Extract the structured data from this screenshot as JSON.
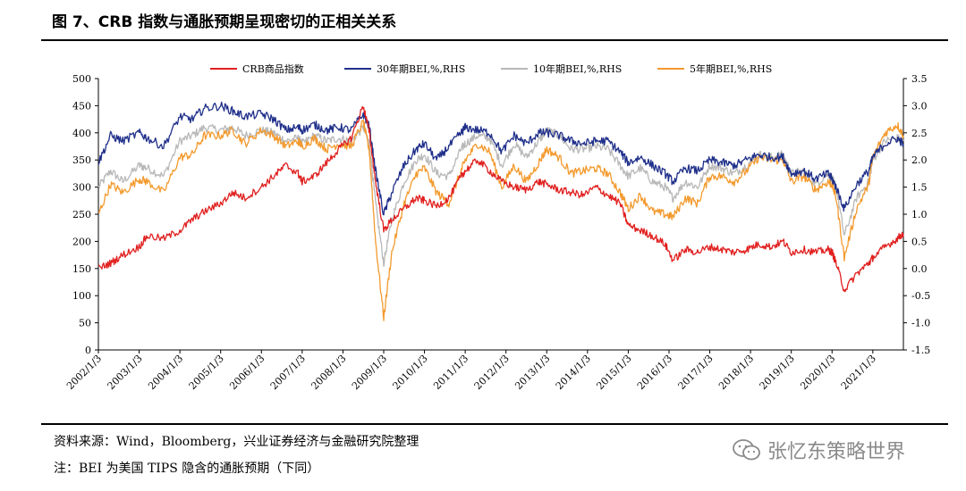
{
  "title": "图 7、CRB 指数与通胀预期呈现密切的正相关关系",
  "source": "资料来源：Wind，Bloomberg，兴业证券经济与金融研究院整理",
  "note": "注：BEI 为美国 TIPS 隐含的通胀预期（下同）",
  "watermark": "张忆东策略世界",
  "watermark_icon": "wechat-icon",
  "chart_data": {
    "type": "line",
    "xlabel": "",
    "ylabel": "",
    "x_ticks": [
      "2002/1/3",
      "2003/1/3",
      "2004/1/3",
      "2005/1/3",
      "2006/1/3",
      "2007/1/3",
      "2008/1/3",
      "2009/1/3",
      "2010/1/3",
      "2011/1/3",
      "2012/1/3",
      "2013/1/3",
      "2014/1/3",
      "2015/1/3",
      "2016/1/3",
      "2017/1/3",
      "2018/1/3",
      "2019/1/3",
      "2020/1/3",
      "2021/1/3"
    ],
    "x_range": [
      2002.0,
      2021.75
    ],
    "y_left": {
      "min": 0,
      "max": 500,
      "ticks": [
        "0",
        "50",
        "100",
        "150",
        "200",
        "250",
        "300",
        "350",
        "400",
        "450",
        "500"
      ]
    },
    "y_right": {
      "min": -1.5,
      "max": 3.5,
      "ticks": [
        "-1.5",
        "-1.0",
        "-0.5",
        "0.0",
        "0.5",
        "1.0",
        "1.5",
        "2.0",
        "2.5",
        "3.0",
        "3.5"
      ]
    },
    "grid": false,
    "legend_position": "top",
    "series": [
      {
        "name": "CRB商品指数",
        "axis": "left",
        "color": "#e0201f",
        "x": [
          2002.0,
          2002.3,
          2002.6,
          2003.0,
          2003.2,
          2003.6,
          2004.0,
          2004.3,
          2004.6,
          2005.0,
          2005.3,
          2005.6,
          2006.0,
          2006.3,
          2006.6,
          2006.9,
          2007.0,
          2007.3,
          2007.6,
          2007.9,
          2008.2,
          2008.5,
          2008.65,
          2008.8,
          2009.0,
          2009.2,
          2009.5,
          2009.8,
          2010.0,
          2010.3,
          2010.6,
          2010.9,
          2011.0,
          2011.3,
          2011.6,
          2011.9,
          2012.2,
          2012.5,
          2012.8,
          2013.0,
          2013.3,
          2013.6,
          2013.9,
          2014.2,
          2014.5,
          2014.8,
          2015.0,
          2015.3,
          2015.6,
          2015.9,
          2016.1,
          2016.4,
          2016.7,
          2017.0,
          2017.3,
          2017.6,
          2017.9,
          2018.2,
          2018.5,
          2018.8,
          2019.0,
          2019.3,
          2019.6,
          2019.9,
          2020.0,
          2020.1,
          2020.3,
          2020.6,
          2020.9,
          2021.0,
          2021.3,
          2021.6,
          2021.75
        ],
        "y": [
          150,
          160,
          175,
          190,
          210,
          205,
          220,
          240,
          255,
          270,
          290,
          280,
          300,
          320,
          340,
          325,
          310,
          320,
          345,
          370,
          390,
          450,
          400,
          310,
          220,
          240,
          260,
          280,
          275,
          265,
          280,
          320,
          330,
          350,
          330,
          310,
          300,
          295,
          310,
          305,
          295,
          290,
          285,
          300,
          285,
          270,
          230,
          220,
          210,
          195,
          165,
          185,
          180,
          190,
          185,
          180,
          185,
          195,
          190,
          200,
          180,
          185,
          180,
          185,
          180,
          160,
          110,
          140,
          160,
          170,
          190,
          205,
          215
        ]
      },
      {
        "name": "30年期BEI,%,RHS",
        "axis": "right",
        "color": "#1f2f8a",
        "x": [
          2002.0,
          2002.3,
          2002.6,
          2003.0,
          2003.2,
          2003.6,
          2004.0,
          2004.3,
          2004.6,
          2005.0,
          2005.3,
          2005.6,
          2006.0,
          2006.3,
          2006.6,
          2006.9,
          2007.0,
          2007.3,
          2007.6,
          2007.9,
          2008.2,
          2008.5,
          2008.65,
          2008.8,
          2009.0,
          2009.2,
          2009.5,
          2009.8,
          2010.0,
          2010.3,
          2010.6,
          2010.9,
          2011.0,
          2011.3,
          2011.6,
          2011.9,
          2012.2,
          2012.5,
          2012.8,
          2013.0,
          2013.3,
          2013.6,
          2013.9,
          2014.2,
          2014.5,
          2014.8,
          2015.0,
          2015.3,
          2015.6,
          2015.9,
          2016.1,
          2016.4,
          2016.7,
          2017.0,
          2017.3,
          2017.6,
          2017.9,
          2018.2,
          2018.5,
          2018.8,
          2019.0,
          2019.3,
          2019.6,
          2019.9,
          2020.0,
          2020.1,
          2020.3,
          2020.6,
          2020.9,
          2021.0,
          2021.3,
          2021.6,
          2021.75
        ],
        "y": [
          1.95,
          2.45,
          2.35,
          2.5,
          2.4,
          2.25,
          2.8,
          2.75,
          2.95,
          3.0,
          2.9,
          2.8,
          2.85,
          2.75,
          2.55,
          2.6,
          2.55,
          2.65,
          2.55,
          2.6,
          2.55,
          2.85,
          2.6,
          1.8,
          1.0,
          1.4,
          1.9,
          2.2,
          2.3,
          2.0,
          2.25,
          2.5,
          2.6,
          2.55,
          2.5,
          2.15,
          2.45,
          2.3,
          2.5,
          2.5,
          2.45,
          2.35,
          2.3,
          2.35,
          2.35,
          2.15,
          1.95,
          2.05,
          1.9,
          1.75,
          1.6,
          1.85,
          1.8,
          2.0,
          1.95,
          1.9,
          2.0,
          2.1,
          2.05,
          2.05,
          1.75,
          1.8,
          1.65,
          1.75,
          1.65,
          1.5,
          1.1,
          1.55,
          1.8,
          2.05,
          2.3,
          2.4,
          2.3
        ]
      },
      {
        "name": "10年期BEI,%,RHS",
        "axis": "right",
        "color": "#b8b8b8",
        "x": [
          2002.0,
          2002.3,
          2002.6,
          2003.0,
          2003.2,
          2003.6,
          2004.0,
          2004.3,
          2004.6,
          2005.0,
          2005.3,
          2005.6,
          2006.0,
          2006.3,
          2006.6,
          2006.9,
          2007.0,
          2007.3,
          2007.6,
          2007.9,
          2008.2,
          2008.5,
          2008.65,
          2008.8,
          2009.0,
          2009.2,
          2009.5,
          2009.8,
          2010.0,
          2010.3,
          2010.6,
          2010.9,
          2011.0,
          2011.3,
          2011.6,
          2011.9,
          2012.2,
          2012.5,
          2012.8,
          2013.0,
          2013.3,
          2013.6,
          2013.9,
          2014.2,
          2014.5,
          2014.8,
          2015.0,
          2015.3,
          2015.6,
          2015.9,
          2016.1,
          2016.4,
          2016.7,
          2017.0,
          2017.3,
          2017.6,
          2017.9,
          2018.2,
          2018.5,
          2018.8,
          2019.0,
          2019.3,
          2019.6,
          2019.9,
          2020.0,
          2020.1,
          2020.3,
          2020.6,
          2020.9,
          2021.0,
          2021.3,
          2021.6,
          2021.75
        ],
        "y": [
          1.5,
          1.8,
          1.6,
          1.9,
          1.85,
          1.7,
          2.35,
          2.45,
          2.6,
          2.55,
          2.6,
          2.45,
          2.55,
          2.5,
          2.35,
          2.4,
          2.3,
          2.45,
          2.35,
          2.4,
          2.35,
          2.6,
          2.3,
          1.2,
          0.1,
          0.9,
          1.6,
          2.0,
          2.1,
          1.75,
          1.7,
          2.2,
          2.3,
          2.45,
          2.4,
          1.9,
          2.3,
          2.05,
          2.35,
          2.55,
          2.45,
          2.2,
          2.2,
          2.25,
          2.2,
          1.9,
          1.7,
          1.85,
          1.6,
          1.5,
          1.3,
          1.6,
          1.5,
          1.9,
          1.85,
          1.75,
          1.9,
          2.1,
          2.05,
          2.1,
          1.75,
          1.8,
          1.55,
          1.75,
          1.65,
          1.5,
          0.6,
          1.3,
          1.6,
          2.0,
          2.35,
          2.4,
          2.35
        ]
      },
      {
        "name": "5年期BEI,%,RHS",
        "axis": "right",
        "color": "#f39a2e",
        "x": [
          2002.0,
          2002.3,
          2002.6,
          2003.0,
          2003.2,
          2003.6,
          2004.0,
          2004.3,
          2004.6,
          2005.0,
          2005.3,
          2005.6,
          2006.0,
          2006.3,
          2006.6,
          2006.9,
          2007.0,
          2007.3,
          2007.6,
          2007.9,
          2008.2,
          2008.5,
          2008.65,
          2008.8,
          2009.0,
          2009.2,
          2009.5,
          2009.8,
          2010.0,
          2010.3,
          2010.6,
          2010.9,
          2011.0,
          2011.3,
          2011.6,
          2011.9,
          2012.2,
          2012.5,
          2012.8,
          2013.0,
          2013.3,
          2013.6,
          2013.9,
          2014.2,
          2014.5,
          2014.8,
          2015.0,
          2015.3,
          2015.6,
          2015.9,
          2016.1,
          2016.4,
          2016.7,
          2017.0,
          2017.3,
          2017.6,
          2017.9,
          2018.2,
          2018.5,
          2018.8,
          2019.0,
          2019.3,
          2019.6,
          2019.9,
          2020.0,
          2020.1,
          2020.3,
          2020.6,
          2020.9,
          2021.0,
          2021.3,
          2021.6,
          2021.75
        ],
        "y": [
          1.0,
          1.55,
          1.4,
          1.65,
          1.6,
          1.4,
          2.05,
          2.1,
          2.45,
          2.45,
          2.55,
          2.3,
          2.55,
          2.45,
          2.25,
          2.35,
          2.25,
          2.4,
          2.2,
          2.3,
          2.25,
          2.7,
          2.15,
          0.5,
          -0.9,
          0.3,
          1.2,
          1.75,
          1.85,
          1.4,
          1.2,
          1.8,
          2.0,
          2.3,
          2.15,
          1.5,
          1.9,
          1.6,
          1.95,
          2.2,
          2.05,
          1.75,
          1.8,
          1.85,
          1.75,
          1.4,
          1.1,
          1.35,
          1.05,
          1.0,
          0.95,
          1.3,
          1.2,
          1.7,
          1.7,
          1.6,
          1.8,
          2.05,
          2.0,
          2.0,
          1.6,
          1.7,
          1.45,
          1.6,
          1.55,
          1.3,
          0.2,
          1.1,
          1.55,
          2.05,
          2.5,
          2.65,
          2.45
        ]
      }
    ]
  }
}
